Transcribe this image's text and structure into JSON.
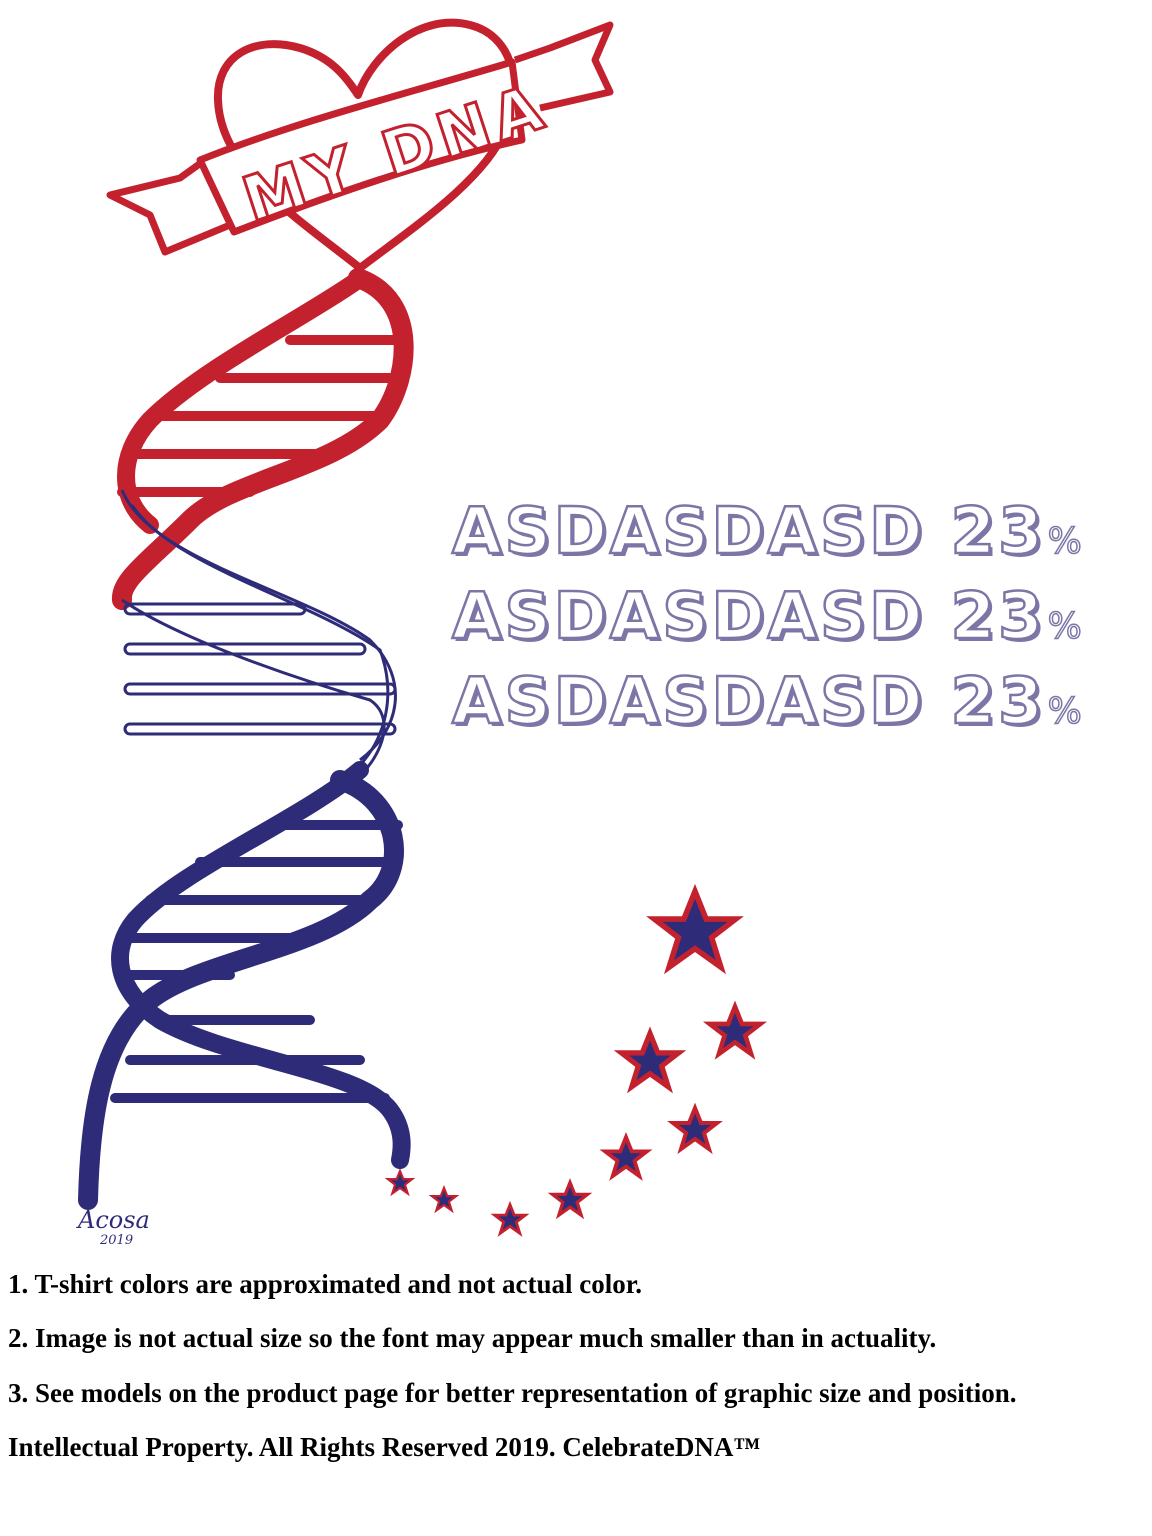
{
  "banner_text": "MY DNA",
  "signature": {
    "name": "Acosa",
    "year": "2019"
  },
  "percent_lines": [
    {
      "label": "ASDASDASD",
      "value": "23",
      "unit": "%"
    },
    {
      "label": "ASDASDASD",
      "value": "23",
      "unit": "%"
    },
    {
      "label": "ASDASDASD",
      "value": "23",
      "unit": "%"
    }
  ],
  "notes": [
    "1. T-shirt colors are approximated and not actual color.",
    "2. Image is not actual size so the font may appear much smaller than in actuality.",
    "3. See models on the product page for better representation of graphic size and position."
  ],
  "copyright": "Intellectual Property. All Rights Reserved 2019. CelebrateDNA™",
  "colors": {
    "red": "#c4212f",
    "navy": "#2e2c78",
    "text_purple": "#7b76a6"
  }
}
